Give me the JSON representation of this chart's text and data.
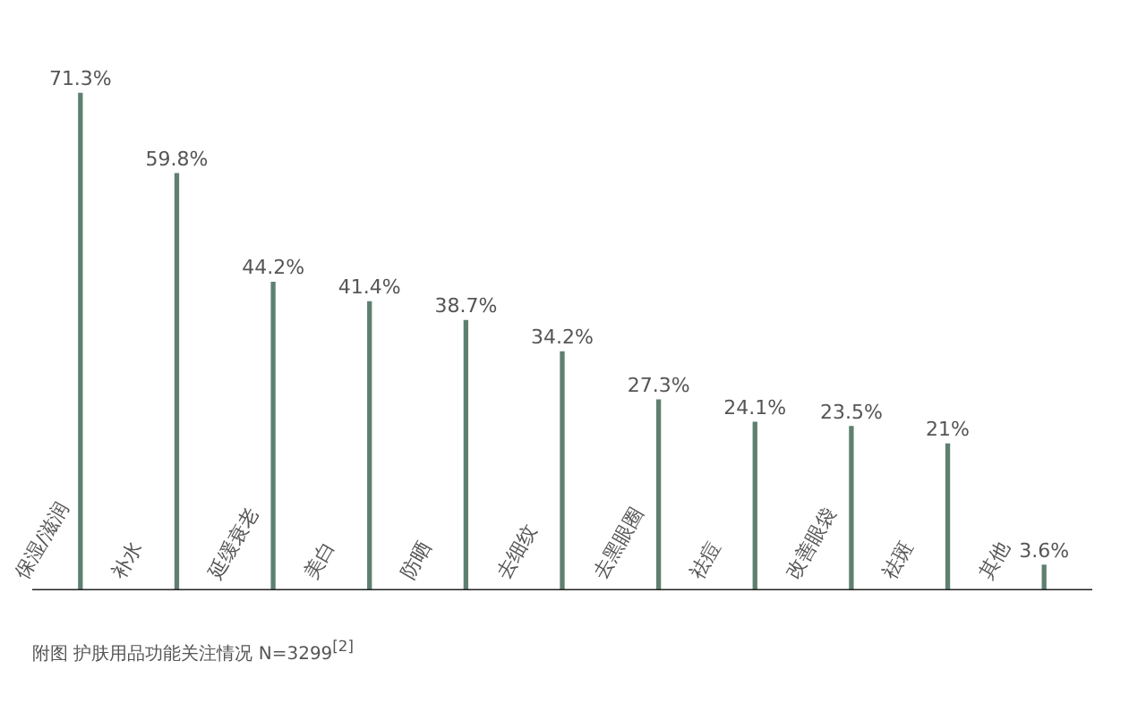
{
  "chart_data": {
    "type": "bar",
    "categories": [
      "保湿/滋润",
      "补水",
      "延缓衰老",
      "美白",
      "防晒",
      "去细纹",
      "去黑眼圈",
      "祛痘",
      "改善眼袋",
      "祛斑",
      "其他"
    ],
    "values": [
      71.3,
      59.8,
      44.2,
      41.4,
      38.7,
      34.2,
      27.3,
      24.1,
      23.5,
      21,
      3.6
    ],
    "value_labels": [
      "71.3%",
      "59.8%",
      "44.2%",
      "41.4%",
      "38.7%",
      "34.2%",
      "27.3%",
      "24.1%",
      "23.5%",
      "21%",
      "3.6%"
    ],
    "color": "#5f8070",
    "annotations": [
      "附图  护肤用品功能关注情况  N=3299$^{[2]}$"
    ]
  }
}
